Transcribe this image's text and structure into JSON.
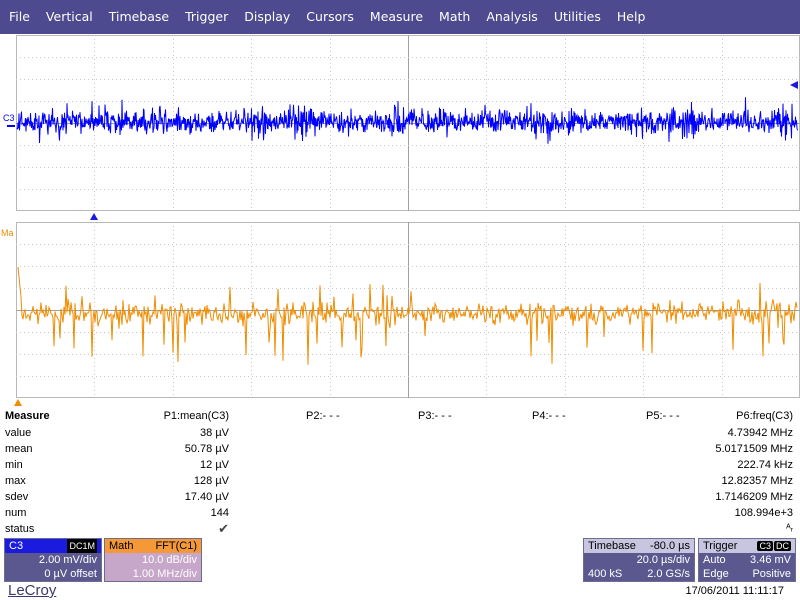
{
  "menu": [
    "File",
    "Vertical",
    "Timebase",
    "Trigger",
    "Display",
    "Cursors",
    "Measure",
    "Math",
    "Analysis",
    "Utilities",
    "Help"
  ],
  "traces": {
    "c3_label": "C3",
    "math_label": "Ma",
    "c3_color": "#0000ff",
    "math_color": "#f08c00"
  },
  "measure": {
    "title": "Measure",
    "params": [
      "P1:mean(C3)",
      "P2:- - -",
      "P3:- - -",
      "P4:- - -",
      "P5:- - -",
      "P6:freq(C3)"
    ],
    "rows": [
      {
        "label": "value",
        "p1": "38 µV",
        "p6": "4.73942 MHz"
      },
      {
        "label": "mean",
        "p1": "50.78 µV",
        "p6": "5.0171509 MHz"
      },
      {
        "label": "min",
        "p1": "12 µV",
        "p6": "222.74 kHz"
      },
      {
        "label": "max",
        "p1": "128 µV",
        "p6": "12.82357 MHz"
      },
      {
        "label": "sdev",
        "p1": "17.40 µV",
        "p6": "1.7146209 MHz"
      },
      {
        "label": "num",
        "p1": "144",
        "p6": "108.994e+3"
      },
      {
        "label": "status",
        "p1": "✔",
        "p6": "ᴬᵣ"
      }
    ]
  },
  "channel_c3": {
    "name": "C3",
    "coupling": "DC1M",
    "vdiv": "2.00 mV/div",
    "offset": "0 µV offset"
  },
  "channel_math": {
    "name": "Math",
    "function": "FFT(C1)",
    "vdiv": "10.0 dB/div",
    "hdiv": "1.00 MHz/div"
  },
  "timebase": {
    "title": "Timebase",
    "delay": "-80.0 µs",
    "tdiv": "20.0 µs/div",
    "samples": "400 kS",
    "rate": "2.0 GS/s"
  },
  "trigger": {
    "title": "Trigger",
    "badge_ch": "C3",
    "badge_cpl": "DC",
    "mode": "Auto",
    "level": "3.46 mV",
    "type": "Edge",
    "slope": "Positive"
  },
  "footer": {
    "brand": "LeCroy",
    "datetime": "17/06/2011 11:11:17"
  }
}
